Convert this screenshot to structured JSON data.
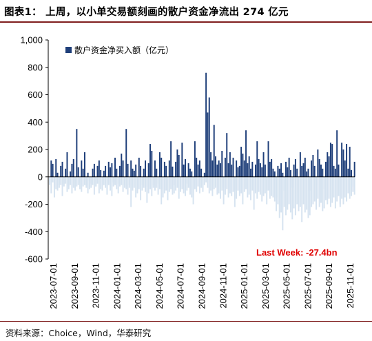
{
  "title": "图表1：  上周，以小单交易额刻画的散户资金净流出 274 亿元",
  "source": "资料来源：Choice，Wind，华泰研究",
  "colors": {
    "positive": "#1f3f7a",
    "negative": "#d6e3f0",
    "rule": "#7f1d1d",
    "annotation": "#e00000"
  },
  "chart_data": {
    "type": "bar",
    "legend": {
      "label": "散户资金净买入额（亿元）",
      "placement": "top-left"
    },
    "annotation": "Last Week: -27.4bn",
    "ylim": [
      -600,
      1000
    ],
    "yticks": [
      "1,000",
      "800",
      "600",
      "400",
      "200",
      "0",
      "-200",
      "-400",
      "-600"
    ],
    "ytick_values": [
      1000,
      800,
      600,
      400,
      200,
      0,
      -200,
      -400,
      -600
    ],
    "xticks": [
      "2023-07-01",
      "2023-09-01",
      "2023-11-01",
      "2024-01-01",
      "2024-03-01",
      "2024-05-01",
      "2024-07-01",
      "2024-09-01",
      "2024-11-01",
      "2025-01-01",
      "2025-03-01",
      "2025-05-01",
      "2025-07-01",
      "2025-09-01",
      "2025-11-01"
    ],
    "series": [
      {
        "values": [
          -40,
          120,
          95,
          -80,
          130,
          30,
          -60,
          80,
          110,
          -50,
          60,
          180,
          -70,
          40,
          95,
          130,
          -90,
          350,
          70,
          -40,
          120,
          60,
          180,
          -60,
          30,
          -30,
          -50,
          60,
          95,
          -70,
          80,
          120,
          50,
          -60,
          45,
          80,
          -90,
          110,
          70,
          100,
          -40,
          140,
          60,
          -50,
          80,
          170,
          120,
          -60,
          350,
          95,
          -80,
          120,
          60,
          45,
          90,
          -110,
          140,
          80,
          -60,
          60,
          120,
          -70,
          100,
          240,
          190,
          -80,
          120,
          60,
          -50,
          180,
          140,
          -90,
          110,
          80,
          -40,
          120,
          260,
          75,
          -60,
          110,
          200,
          160,
          -80,
          250,
          90,
          130,
          -50,
          100,
          60,
          40,
          -150,
          260,
          140,
          90,
          120,
          60,
          -100,
          30,
          760,
          470,
          580,
          180,
          120,
          380,
          150,
          90,
          120,
          100,
          190,
          -80,
          140,
          320,
          100,
          180,
          90,
          140,
          -100,
          120,
          70,
          80,
          220,
          170,
          120,
          340,
          100,
          150,
          60,
          110,
          -120,
          90,
          260,
          130,
          100,
          70,
          180,
          90,
          -100,
          260,
          110,
          130,
          60,
          40,
          -150,
          80,
          60,
          100,
          30,
          -100,
          110,
          70,
          140,
          50,
          -80,
          90,
          130,
          60,
          -120,
          180,
          80,
          100,
          140,
          40,
          60,
          -100,
          120,
          160,
          80,
          -60,
          200,
          130,
          90,
          60,
          -90,
          110,
          180,
          150,
          250,
          240,
          80,
          60,
          340,
          90,
          -200,
          250,
          200,
          120,
          240,
          60,
          220,
          50,
          -70,
          110
        ],
        "negatives": [
          -60,
          -120,
          -40,
          -150,
          -90,
          -100,
          -80,
          -60,
          -140,
          -70,
          -50,
          -110,
          -90,
          -60,
          -120,
          -80,
          -100,
          -70,
          -60,
          -90,
          -110,
          -70,
          -60,
          -80,
          -120,
          -90,
          -80,
          -60,
          -130,
          -70,
          -50,
          -120,
          -90,
          -100,
          -60,
          -80,
          -130,
          -60,
          -100,
          -140,
          -70,
          -60,
          -90,
          -120,
          -70,
          -60,
          -110,
          -80,
          -90,
          -130,
          -60,
          -220,
          -100,
          -80,
          -150,
          -120,
          -90,
          -170,
          -100,
          -80,
          -110,
          -190,
          -120,
          -90,
          -140,
          -60,
          -100,
          -80,
          -130,
          -90,
          -200,
          -150,
          -120,
          -100,
          -170,
          -110,
          -90,
          -130,
          -120,
          -100,
          -80,
          -160,
          -110,
          -90,
          -120,
          -140,
          -100,
          -80,
          -130,
          -150,
          -200,
          -90,
          -110,
          -70,
          -120,
          -80,
          -110,
          -60,
          -40,
          -80,
          -120,
          -100,
          -140,
          -90,
          -80,
          -130,
          -120,
          -160,
          -100,
          -200,
          -130,
          -90,
          -150,
          -120,
          -140,
          -110,
          -220,
          -160,
          -100,
          -140,
          -120,
          -200,
          -110,
          -90,
          -150,
          -130,
          -170,
          -100,
          -240,
          -120,
          -160,
          -110,
          -130,
          -180,
          -140,
          -120,
          -200,
          -100,
          -160,
          -140,
          -150,
          -180,
          -250,
          -200,
          -300,
          -260,
          -390,
          -220,
          -280,
          -240,
          -200,
          -260,
          -310,
          -230,
          -280,
          -200,
          -250,
          -220,
          -330,
          -200,
          -260,
          -240,
          -300,
          -280,
          -220,
          -200,
          -180,
          -240,
          -160,
          -220,
          -190,
          -250,
          -230,
          -170,
          -200,
          -160,
          -220,
          -190,
          -150,
          -230,
          -180,
          -140,
          -220,
          -160,
          -200,
          -150,
          -180,
          -120,
          -160,
          -140,
          -110,
          -130
        ]
      }
    ]
  }
}
